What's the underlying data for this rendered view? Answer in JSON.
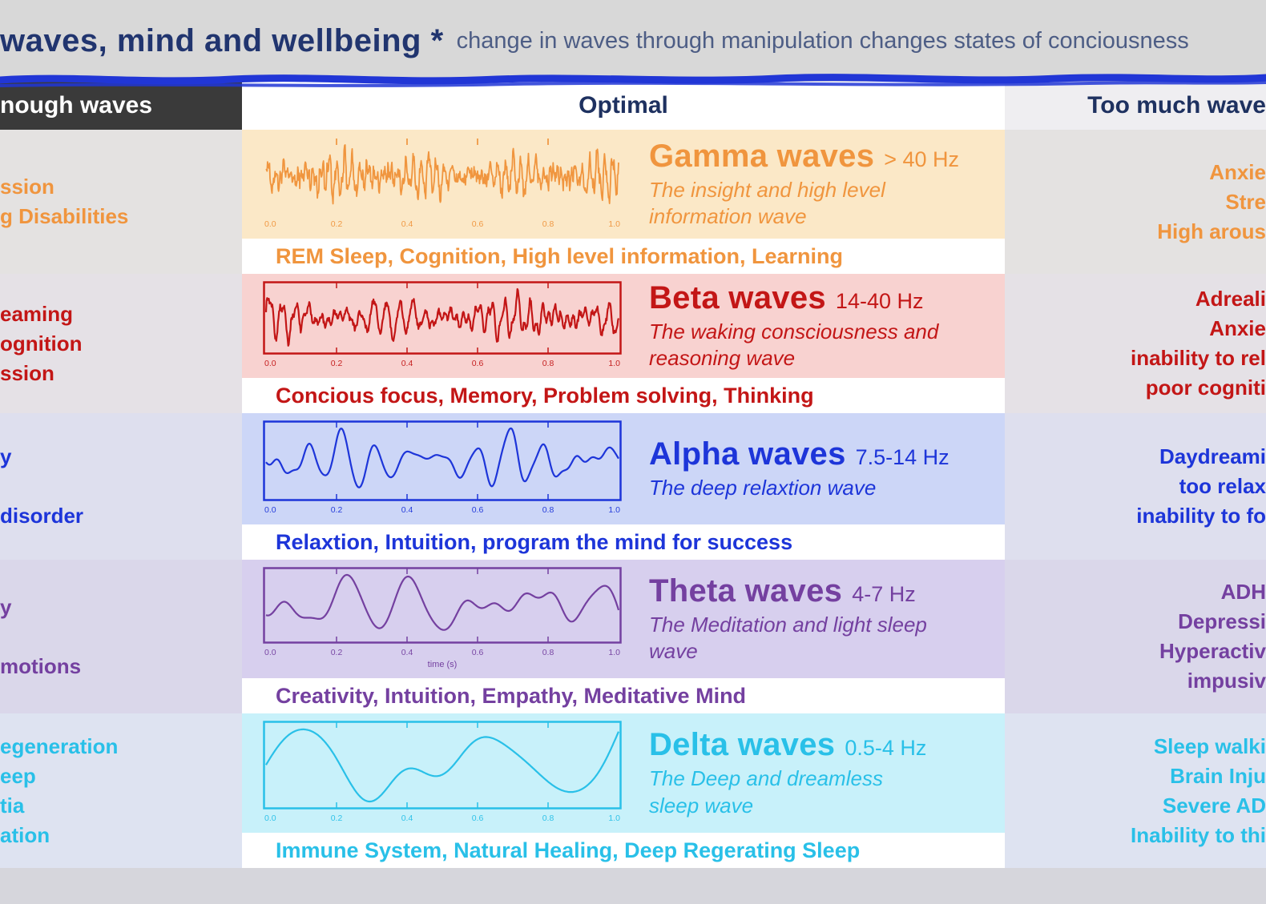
{
  "header": {
    "title": "waves, mind and wellbeing *",
    "subtitle": "change in waves through manipulation changes states of conciousness"
  },
  "columns": {
    "left": "nough waves",
    "center": "Optimal",
    "right": "Too much wave"
  },
  "plot_ticks": [
    "0.0",
    "0.2",
    "0.4",
    "0.6",
    "0.8",
    "1.0"
  ],
  "plot_xlabel": "time (s)",
  "accent_line_color": "#2136d6",
  "waves": [
    {
      "id": "gamma",
      "name": "Gamma waves",
      "freq": "> 40 Hz",
      "description": "The insight and high level\ninformation wave",
      "keywords": "REM Sleep, Cognition, High level information, Learning",
      "color": "#f0953e",
      "band_color": "#fbe8c7",
      "not_enough": [
        "ssion",
        "g Disabilities"
      ],
      "too_much": [
        "Anxie",
        "Stre",
        "High arous"
      ]
    },
    {
      "id": "beta",
      "name": "Beta waves",
      "freq": "14-40 Hz",
      "description": "The waking consciousness and\nreasoning wave",
      "keywords": "Concious focus, Memory, Problem solving, Thinking",
      "color": "#c31616",
      "band_color": "#f8d2d0",
      "not_enough": [
        "eaming",
        "ognition",
        "ssion"
      ],
      "too_much": [
        "Adreali",
        "Anxie",
        "inability to rel",
        "poor cogniti"
      ]
    },
    {
      "id": "alpha",
      "name": "Alpha waves",
      "freq": "7.5-14 Hz",
      "description": "The deep relaxtion wave",
      "keywords": "Relaxtion, Intuition, program the mind for success",
      "color": "#1d35d9",
      "band_color": "#ccd6f7",
      "not_enough": [
        "y",
        "",
        "disorder"
      ],
      "too_much": [
        "Daydreami",
        "too relax",
        "inability to fo"
      ]
    },
    {
      "id": "theta",
      "name": "Theta waves",
      "freq": "4-7 Hz",
      "description": "The Meditation and light sleep\nwave",
      "keywords": "Creativity, Intuition, Empathy, Meditative Mind",
      "color": "#7440a0",
      "band_color": "#d7cfee",
      "not_enough": [
        "y",
        "",
        "motions"
      ],
      "too_much": [
        "ADH",
        "Depressi",
        "Hyperactiv",
        "impusiv"
      ]
    },
    {
      "id": "delta",
      "name": "Delta waves",
      "freq": "0.5-4 Hz",
      "description": "The Deep and dreamless\nsleep  wave",
      "keywords": "Immune System, Natural Healing, Deep Regerating Sleep",
      "color": "#29c0e8",
      "band_color": "#c8f1fa",
      "not_enough": [
        "egeneration",
        "eep",
        "tia",
        "ation"
      ],
      "too_much": [
        "Sleep walki",
        "Brain Inju",
        "Severe AD",
        "Inability to thi"
      ]
    }
  ]
}
